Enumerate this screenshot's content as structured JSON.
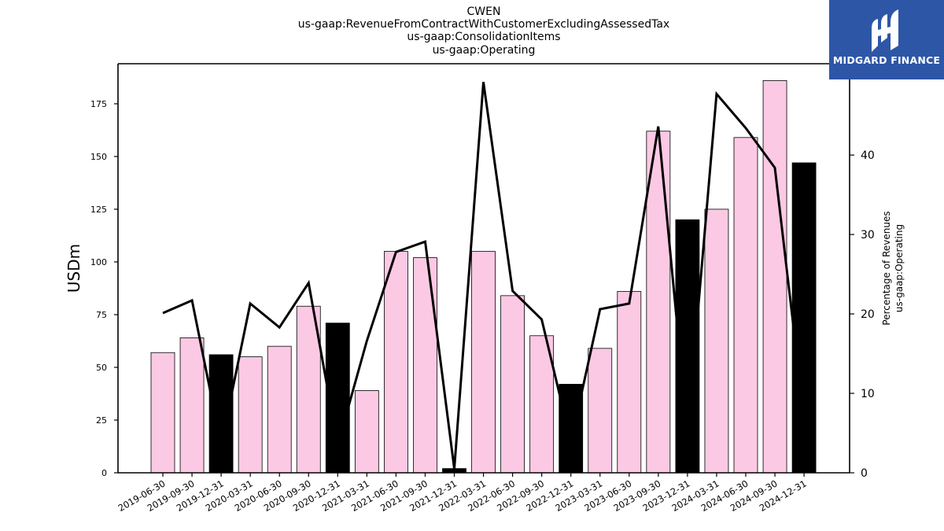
{
  "chart_data": {
    "type": "bar",
    "title_lines": [
      "CWEN",
      "us-gaap:RevenueFromContractWithCustomerExcludingAssessedTax",
      "us-gaap:ConsolidationItems",
      "us-gaap:Operating"
    ],
    "ylabel": "USDm",
    "y2label_lines": [
      "Percentage of Revenues",
      "us-gaap:Operating"
    ],
    "ylim": [
      0,
      194
    ],
    "yticks": [
      0,
      25,
      50,
      75,
      100,
      125,
      150,
      175
    ],
    "y2lim": [
      0,
      51.5
    ],
    "y2ticks": [
      0,
      10,
      20,
      30,
      40
    ],
    "categories": [
      "2019-06-30",
      "2019-09-30",
      "2019-12-31",
      "2020-03-31",
      "2020-06-30",
      "2020-09-30",
      "2020-12-31",
      "2021-03-31",
      "2021-06-30",
      "2021-09-30",
      "2021-12-31",
      "2022-03-31",
      "2022-06-30",
      "2022-09-30",
      "2022-12-31",
      "2023-03-31",
      "2023-06-30",
      "2023-09-30",
      "2023-12-31",
      "2024-03-31",
      "2024-06-30",
      "2024-09-30",
      "2024-12-31"
    ],
    "series": [
      {
        "kind": "bar",
        "values": [
          57,
          64,
          56,
          55,
          60,
          79,
          71,
          39,
          105,
          102,
          2,
          105,
          84,
          65,
          42,
          59,
          86,
          162,
          120,
          125,
          159,
          186,
          147
        ],
        "annual": [
          false,
          false,
          true,
          false,
          false,
          false,
          true,
          false,
          false,
          false,
          true,
          false,
          false,
          false,
          true,
          false,
          false,
          false,
          true,
          false,
          false,
          false,
          true
        ]
      },
      {
        "kind": "line",
        "axis": "right",
        "values": [
          20.1,
          21.7,
          3.5,
          21.3,
          18.3,
          23.9,
          3.5,
          16.6,
          27.8,
          29.1,
          0.5,
          49.2,
          22.9,
          19.3,
          3.9,
          20.6,
          21.3,
          43.6,
          5.0,
          47.7,
          43.4,
          38.4,
          7.0
        ]
      }
    ],
    "colors": {
      "bar": "#fcc9e4",
      "bar_annual": "#000000",
      "bar_edge": "#000000",
      "line": "#000000"
    },
    "grid": false,
    "legend": "none"
  },
  "logo": {
    "text": "MIDGARD FINANCE",
    "background": "#2d56a7"
  }
}
